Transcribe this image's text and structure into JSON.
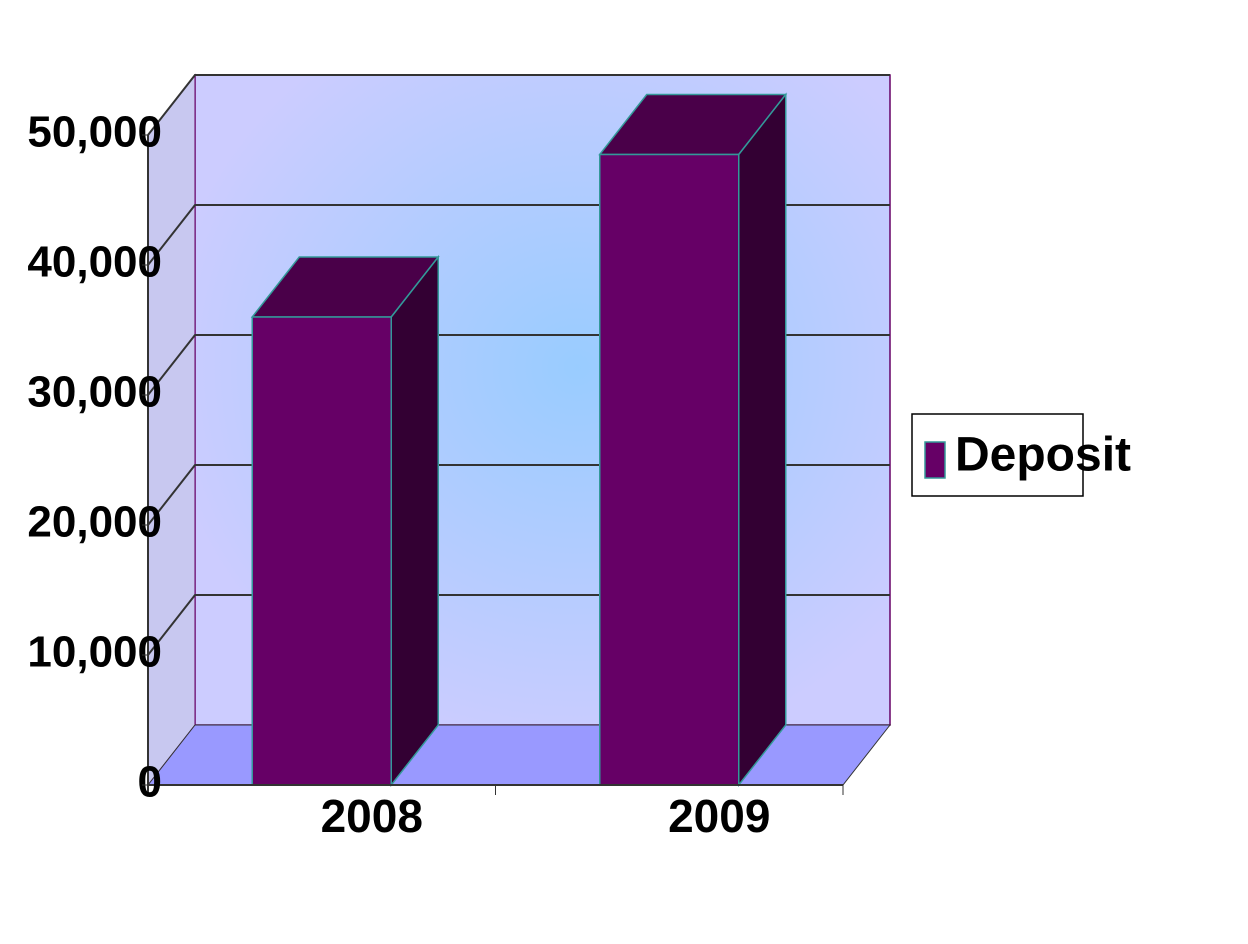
{
  "chart_data": {
    "type": "bar3d",
    "categories": [
      "2008",
      "2009"
    ],
    "series": [
      {
        "name": "Deposit",
        "color": "#660066",
        "values": [
          36000,
          48500
        ]
      }
    ],
    "ylim": [
      0,
      50000
    ],
    "yticks": [
      0,
      {
        "value": 10000,
        "label": "10,000"
      },
      {
        "value": 20000,
        "label": "20,000"
      },
      {
        "value": 30000,
        "label": "30,000"
      },
      {
        "value": 40000,
        "label": "40,000"
      },
      {
        "value": 50000,
        "label": "50,000"
      }
    ],
    "grid": true,
    "legend": "right"
  }
}
